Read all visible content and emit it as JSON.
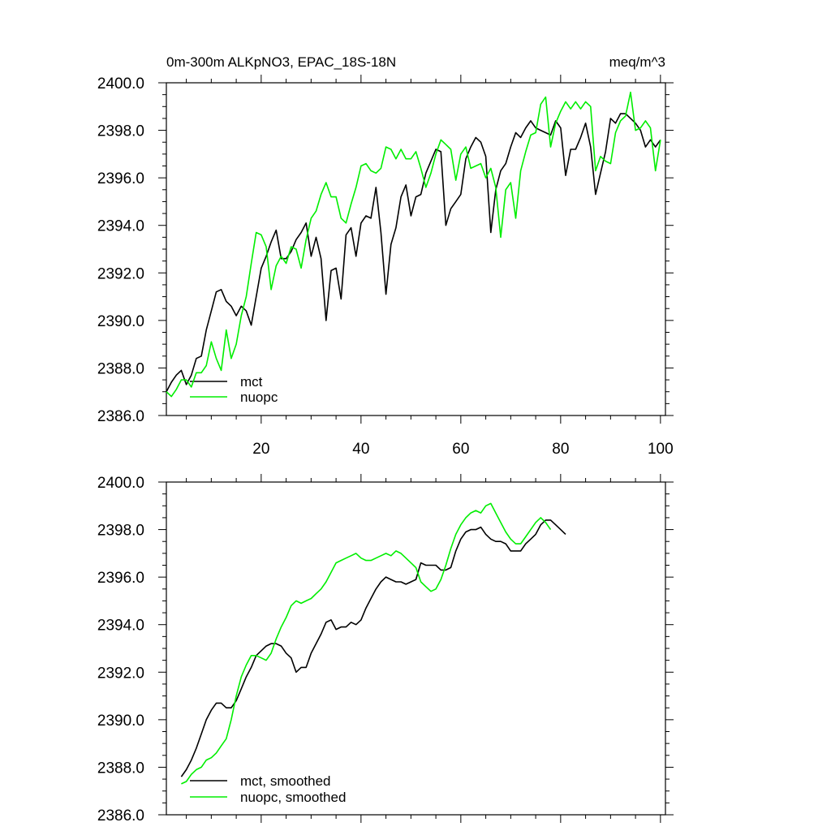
{
  "colors": {
    "mct": "#000000",
    "nuopc": "#00ee00",
    "axis": "#000000",
    "background": "#ffffff"
  },
  "chart_data": [
    {
      "type": "line",
      "title": "0m-300m ALKpNO3, EPAC_18S-18N",
      "units": "meq/m^3",
      "xlim": [
        1,
        101
      ],
      "ylim": [
        2386,
        2400
      ],
      "yticks": [
        "2386.0",
        "2388.0",
        "2390.0",
        "2392.0",
        "2394.0",
        "2396.0",
        "2398.0",
        "2400.0"
      ],
      "xticks": [
        "20",
        "40",
        "60",
        "80",
        "100"
      ],
      "grid": false,
      "legend_position": "bottom-left",
      "x_start": 1,
      "series": [
        {
          "name": "mct",
          "color": "#000000",
          "values": [
            2387.0,
            2387.4,
            2387.7,
            2387.9,
            2387.3,
            2387.7,
            2388.4,
            2388.5,
            2389.6,
            2390.4,
            2391.2,
            2391.3,
            2390.8,
            2390.6,
            2390.2,
            2390.6,
            2390.4,
            2389.8,
            2391.0,
            2392.2,
            2392.7,
            2393.3,
            2393.8,
            2392.6,
            2392.6,
            2392.9,
            2393.4,
            2393.7,
            2394.1,
            2392.7,
            2393.5,
            2392.6,
            2390.0,
            2392.1,
            2392.2,
            2390.9,
            2393.6,
            2393.9,
            2392.7,
            2394.1,
            2394.4,
            2394.3,
            2395.6,
            2393.7,
            2391.1,
            2393.2,
            2393.9,
            2395.2,
            2395.7,
            2394.4,
            2395.2,
            2395.3,
            2396.2,
            2396.7,
            2397.2,
            2397.1,
            2394.0,
            2394.7,
            2395.0,
            2395.3,
            2396.8,
            2397.3,
            2397.7,
            2397.5,
            2396.9,
            2393.7,
            2395.5,
            2396.3,
            2396.6,
            2397.3,
            2397.9,
            2397.7,
            2398.1,
            2398.4,
            2398.1,
            2398.0,
            2397.9,
            2397.8,
            2398.4,
            2398.1,
            2396.1,
            2397.2,
            2397.2,
            2397.7,
            2398.3,
            2397.3,
            2395.3,
            2396.2,
            2397.1,
            2398.5,
            2398.3,
            2398.7,
            2398.7,
            2398.5,
            2398.3,
            2398.0,
            2397.3,
            2397.6,
            2397.3,
            2397.6
          ]
        },
        {
          "name": "nuopc",
          "color": "#00ee00",
          "values": [
            2387.0,
            2386.8,
            2387.1,
            2387.5,
            2387.5,
            2387.2,
            2387.8,
            2387.8,
            2388.1,
            2389.1,
            2388.4,
            2387.9,
            2389.6,
            2388.4,
            2389.0,
            2390.2,
            2391.0,
            2392.4,
            2393.7,
            2393.6,
            2393.1,
            2391.3,
            2392.3,
            2392.7,
            2392.4,
            2393.1,
            2393.0,
            2392.2,
            2393.4,
            2394.3,
            2394.6,
            2395.3,
            2395.8,
            2395.2,
            2395.2,
            2394.3,
            2394.1,
            2394.9,
            2395.6,
            2396.5,
            2396.6,
            2396.3,
            2396.2,
            2396.4,
            2397.3,
            2397.2,
            2396.8,
            2397.2,
            2396.8,
            2396.8,
            2397.1,
            2396.4,
            2395.6,
            2396.2,
            2397.0,
            2397.6,
            2397.4,
            2397.2,
            2395.9,
            2397.0,
            2397.3,
            2396.4,
            2396.5,
            2396.6,
            2396.0,
            2396.4,
            2395.6,
            2393.5,
            2395.5,
            2395.8,
            2394.3,
            2396.3,
            2397.1,
            2397.8,
            2397.9,
            2399.1,
            2399.4,
            2397.3,
            2398.3,
            2398.8,
            2399.2,
            2398.9,
            2399.2,
            2398.9,
            2399.2,
            2399.0,
            2396.3,
            2396.9,
            2396.7,
            2396.6,
            2397.9,
            2398.4,
            2398.6,
            2399.6,
            2398.0,
            2398.1,
            2398.4,
            2398.1,
            2396.3,
            2397.6
          ]
        }
      ]
    },
    {
      "type": "line",
      "xlim": [
        1,
        101
      ],
      "ylim": [
        2386,
        2400
      ],
      "yticks": [
        "2386.0",
        "2388.0",
        "2390.0",
        "2392.0",
        "2394.0",
        "2396.0",
        "2398.0",
        "2400.0"
      ],
      "grid": false,
      "legend_position": "bottom-left",
      "x_start": 4,
      "series": [
        {
          "name": "mct, smoothed",
          "color": "#000000",
          "values": [
            2387.6,
            2387.9,
            2388.3,
            2388.8,
            2389.4,
            2390.0,
            2390.4,
            2390.7,
            2390.7,
            2390.5,
            2390.5,
            2390.8,
            2391.3,
            2391.8,
            2392.2,
            2392.7,
            2392.9,
            2393.1,
            2393.2,
            2393.2,
            2393.1,
            2392.8,
            2392.6,
            2392.0,
            2392.2,
            2392.2,
            2392.8,
            2393.2,
            2393.6,
            2394.1,
            2394.2,
            2393.8,
            2393.9,
            2393.9,
            2394.1,
            2394.0,
            2394.2,
            2394.7,
            2395.1,
            2395.5,
            2395.8,
            2396.0,
            2395.9,
            2395.8,
            2395.8,
            2395.7,
            2395.8,
            2395.9,
            2396.6,
            2396.5,
            2396.5,
            2396.5,
            2396.3,
            2396.3,
            2396.4,
            2397.1,
            2397.6,
            2397.9,
            2398.0,
            2398.0,
            2398.1,
            2397.8,
            2397.6,
            2397.5,
            2397.5,
            2397.4,
            2397.1,
            2397.1,
            2397.1,
            2397.4,
            2397.6,
            2397.8,
            2398.2,
            2398.4,
            2398.4,
            2398.2,
            2398.0,
            2397.8
          ]
        },
        {
          "name": "nuopc, smoothed",
          "color": "#00ee00",
          "values": [
            2387.3,
            2387.4,
            2387.7,
            2387.9,
            2388.0,
            2388.3,
            2388.4,
            2388.6,
            2388.9,
            2389.2,
            2390.0,
            2391.0,
            2391.8,
            2392.3,
            2392.7,
            2392.7,
            2392.6,
            2392.5,
            2392.8,
            2393.4,
            2393.9,
            2394.3,
            2394.8,
            2395.0,
            2394.9,
            2395.0,
            2395.1,
            2395.3,
            2395.5,
            2395.8,
            2396.2,
            2396.6,
            2396.7,
            2396.8,
            2396.9,
            2397.0,
            2396.8,
            2396.7,
            2396.7,
            2396.8,
            2396.9,
            2397.0,
            2396.9,
            2397.1,
            2397.0,
            2396.8,
            2396.6,
            2396.4,
            2395.8,
            2395.6,
            2395.4,
            2395.5,
            2395.9,
            2396.5,
            2397.2,
            2397.8,
            2398.2,
            2398.5,
            2398.7,
            2398.8,
            2398.7,
            2399.0,
            2399.1,
            2398.7,
            2398.3,
            2397.9,
            2397.6,
            2397.4,
            2397.4,
            2397.7,
            2398.0,
            2398.3,
            2398.5,
            2398.3,
            2398.0
          ]
        }
      ]
    }
  ]
}
